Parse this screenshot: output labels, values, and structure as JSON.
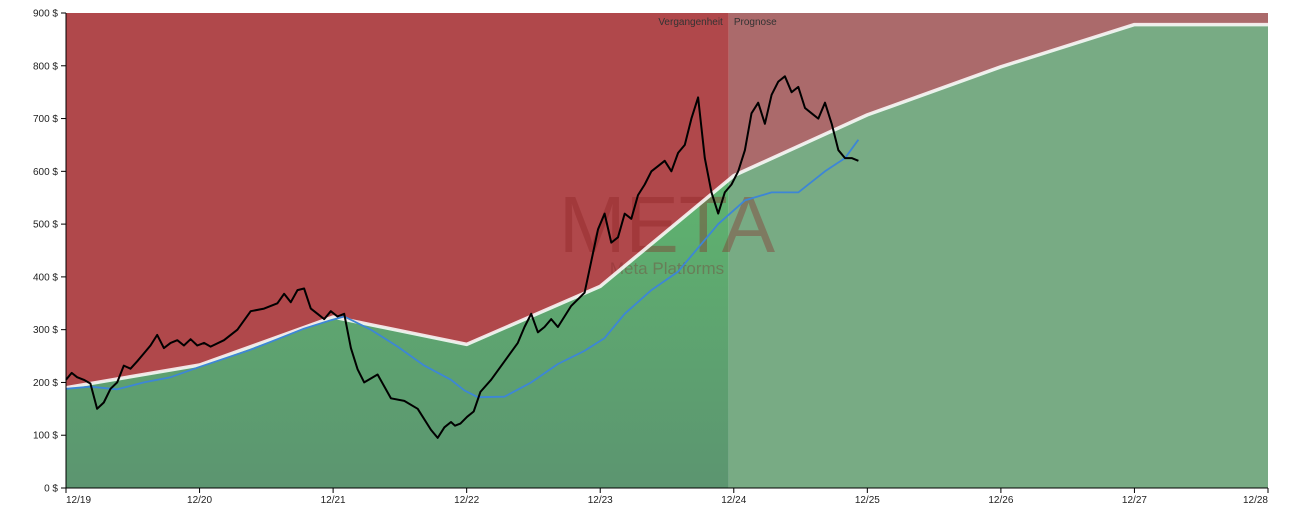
{
  "chart_data": {
    "type": "line",
    "watermark": {
      "ticker": "META",
      "company": "Meta Platforms"
    },
    "regions": {
      "past_label": "Vergangenheit",
      "forecast_label": "Prognose",
      "forecast_start": 2024.88
    },
    "xlim": [
      2019.917,
      2028.917
    ],
    "ylim": [
      0,
      900
    ],
    "y_tick_values": [
      0,
      100,
      200,
      300,
      400,
      500,
      600,
      700,
      800,
      900
    ],
    "y_tick_labels": [
      "0 $",
      "100 $",
      "200 $",
      "300 $",
      "400 $",
      "500 $",
      "600 $",
      "700 $",
      "800 $",
      "900 $"
    ],
    "x_tick_values": [
      2019.917,
      2020.917,
      2021.917,
      2022.917,
      2023.917,
      2024.917,
      2025.917,
      2026.917,
      2027.917,
      2028.917
    ],
    "x_tick_labels": [
      "12/19",
      "12/20",
      "12/21",
      "12/22",
      "12/23",
      "12/24",
      "12/25",
      "12/26",
      "12/27",
      "12/28"
    ],
    "colors": {
      "upper_past": "#b0484b",
      "upper_forecast": "#ab6a6b",
      "lower_past_top": "#5fb36f",
      "lower_past_bottom": "#5c9570",
      "lower_forecast": "#78ab84",
      "price": "#000000",
      "moving_average": "#3d86d6",
      "fair_value": "#ffffff"
    },
    "series": [
      {
        "key": "fair_value",
        "x": [
          2019.917,
          2020.917,
          2021.917,
          2022.917,
          2023.917,
          2024.917,
          2025.917,
          2026.917,
          2027.917,
          2028.917
        ],
        "y": [
          190,
          233,
          324,
          272,
          382,
          592,
          707,
          798,
          878,
          878
        ]
      },
      {
        "key": "price",
        "x": [
          2019.917,
          2019.96,
          2020.0,
          2020.05,
          2020.1,
          2020.15,
          2020.2,
          2020.25,
          2020.3,
          2020.35,
          2020.4,
          2020.45,
          2020.5,
          2020.55,
          2020.6,
          2020.65,
          2020.7,
          2020.75,
          2020.8,
          2020.85,
          2020.9,
          2020.95,
          2021.0,
          2021.1,
          2021.2,
          2021.3,
          2021.4,
          2021.5,
          2021.55,
          2021.6,
          2021.65,
          2021.7,
          2021.75,
          2021.8,
          2021.85,
          2021.9,
          2021.95,
          2022.0,
          2022.05,
          2022.1,
          2022.15,
          2022.25,
          2022.35,
          2022.45,
          2022.55,
          2022.65,
          2022.7,
          2022.75,
          2022.8,
          2022.83,
          2022.87,
          2022.92,
          2022.97,
          2023.02,
          2023.1,
          2023.2,
          2023.3,
          2023.35,
          2023.4,
          2023.45,
          2023.5,
          2023.55,
          2023.6,
          2023.7,
          2023.8,
          2023.85,
          2023.9,
          2023.95,
          2024.0,
          2024.05,
          2024.1,
          2024.15,
          2024.2,
          2024.25,
          2024.3,
          2024.35,
          2024.4,
          2024.45,
          2024.5,
          2024.55,
          2024.6,
          2024.65,
          2024.7,
          2024.75,
          2024.8,
          2024.85,
          2024.9,
          2024.95,
          2025.0,
          2025.05,
          2025.1,
          2025.15,
          2025.2,
          2025.25,
          2025.3,
          2025.35,
          2025.4,
          2025.45,
          2025.5,
          2025.55,
          2025.6,
          2025.65,
          2025.7,
          2025.75,
          2025.8,
          2025.85
        ],
        "y": [
          205,
          218,
          210,
          205,
          198,
          150,
          162,
          188,
          200,
          232,
          226,
          240,
          255,
          270,
          290,
          265,
          275,
          280,
          270,
          282,
          270,
          275,
          268,
          280,
          300,
          335,
          340,
          350,
          368,
          352,
          375,
          378,
          340,
          330,
          320,
          335,
          325,
          330,
          265,
          225,
          200,
          215,
          170,
          165,
          150,
          110,
          95,
          115,
          125,
          118,
          122,
          135,
          145,
          182,
          205,
          240,
          275,
          305,
          330,
          295,
          305,
          320,
          305,
          345,
          370,
          430,
          490,
          520,
          465,
          475,
          520,
          510,
          555,
          575,
          600,
          610,
          620,
          600,
          635,
          650,
          700,
          740,
          625,
          560,
          520,
          560,
          575,
          600,
          640,
          710,
          730,
          690,
          745,
          770,
          780,
          750,
          760,
          720,
          710,
          700,
          730,
          690,
          640,
          625,
          625,
          620
        ]
      },
      {
        "key": "moving_average",
        "x": [
          2019.917,
          2020.1,
          2020.3,
          2020.5,
          2020.7,
          2020.9,
          2021.1,
          2021.3,
          2021.5,
          2021.7,
          2021.9,
          2022.0,
          2022.2,
          2022.4,
          2022.6,
          2022.8,
          2022.9,
          2023.0,
          2023.2,
          2023.4,
          2023.6,
          2023.8,
          2023.95,
          2024.1,
          2024.3,
          2024.5,
          2024.6,
          2024.8,
          2025.0,
          2025.2,
          2025.4,
          2025.6,
          2025.75,
          2025.85
        ],
        "y": [
          188,
          192,
          187,
          200,
          210,
          228,
          245,
          262,
          282,
          302,
          318,
          325,
          300,
          268,
          232,
          205,
          185,
          172,
          173,
          200,
          235,
          260,
          284,
          330,
          375,
          410,
          440,
          500,
          545,
          560,
          560,
          600,
          625,
          660
        ]
      }
    ]
  }
}
